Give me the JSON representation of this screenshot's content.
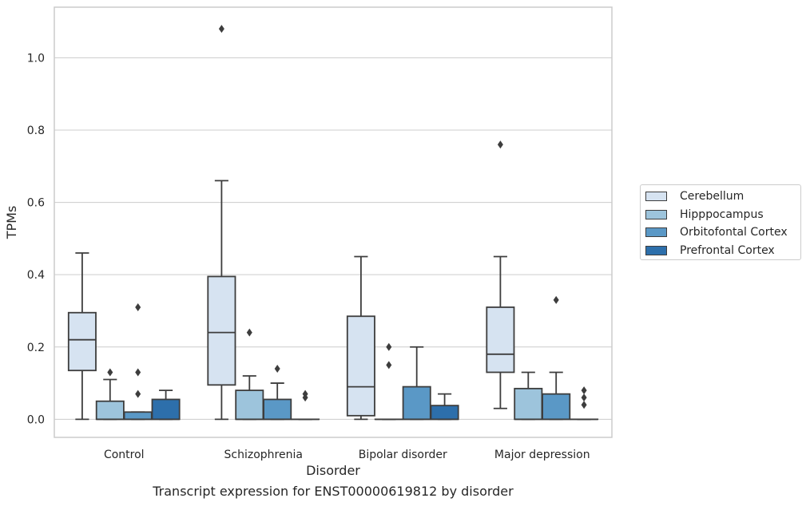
{
  "caption": "Transcript expression for ENST00000619812 by disorder",
  "chart_data": {
    "type": "box",
    "xlabel": "Disorder",
    "ylabel": "TPMs",
    "ylim": [
      -0.05,
      1.14
    ],
    "yticks": [
      "0.0",
      "0.2",
      "0.4",
      "0.6",
      "0.8",
      "1.0"
    ],
    "grid": "horizontal",
    "legend_position": "right",
    "categories": [
      "Control",
      "Schizophrenia",
      "Bipolar disorder",
      "Major depression"
    ],
    "series": [
      {
        "name": "Cerebellum",
        "color": "#d6e3f1",
        "boxes": [
          {
            "min": 0.0,
            "q1": 0.135,
            "median": 0.22,
            "q3": 0.295,
            "max": 0.46,
            "fliers": []
          },
          {
            "min": 0.0,
            "q1": 0.095,
            "median": 0.24,
            "q3": 0.395,
            "max": 0.66,
            "fliers": [
              1.08
            ]
          },
          {
            "min": 0.0,
            "q1": 0.01,
            "median": 0.09,
            "q3": 0.285,
            "max": 0.45,
            "fliers": []
          },
          {
            "min": 0.03,
            "q1": 0.13,
            "median": 0.18,
            "q3": 0.31,
            "max": 0.45,
            "fliers": [
              0.76
            ]
          }
        ]
      },
      {
        "name": "Hipppocampus",
        "color": "#9dc4dc",
        "boxes": [
          {
            "min": 0.0,
            "q1": 0.0,
            "median": 0.0,
            "q3": 0.05,
            "max": 0.11,
            "fliers": [
              0.13
            ]
          },
          {
            "min": 0.0,
            "q1": 0.0,
            "median": 0.0,
            "q3": 0.08,
            "max": 0.12,
            "fliers": [
              0.24
            ]
          },
          {
            "min": 0.0,
            "q1": 0.0,
            "median": 0.0,
            "q3": 0.0,
            "max": 0.0,
            "fliers": [
              0.15,
              0.2
            ]
          },
          {
            "min": 0.0,
            "q1": 0.0,
            "median": 0.0,
            "q3": 0.085,
            "max": 0.13,
            "fliers": []
          }
        ]
      },
      {
        "name": "Orbitofontal Cortex",
        "color": "#5a98c6",
        "boxes": [
          {
            "min": 0.0,
            "q1": 0.0,
            "median": 0.0,
            "q3": 0.02,
            "max": 0.02,
            "fliers": [
              0.07,
              0.13,
              0.31
            ]
          },
          {
            "min": 0.0,
            "q1": 0.0,
            "median": 0.0,
            "q3": 0.055,
            "max": 0.1,
            "fliers": [
              0.14
            ]
          },
          {
            "min": 0.0,
            "q1": 0.0,
            "median": 0.0,
            "q3": 0.09,
            "max": 0.2,
            "fliers": []
          },
          {
            "min": 0.0,
            "q1": 0.0,
            "median": 0.0,
            "q3": 0.07,
            "max": 0.13,
            "fliers": [
              0.33
            ]
          }
        ]
      },
      {
        "name": "Prefrontal Cortex",
        "color": "#2d6fab",
        "boxes": [
          {
            "min": 0.0,
            "q1": 0.0,
            "median": 0.0,
            "q3": 0.055,
            "max": 0.08,
            "fliers": []
          },
          {
            "min": 0.0,
            "q1": 0.0,
            "median": 0.0,
            "q3": 0.0,
            "max": 0.0,
            "fliers": [
              0.06,
              0.07
            ]
          },
          {
            "min": 0.0,
            "q1": 0.0,
            "median": 0.0,
            "q3": 0.038,
            "max": 0.07,
            "fliers": []
          },
          {
            "min": 0.0,
            "q1": 0.0,
            "median": 0.0,
            "q3": 0.0,
            "max": 0.0,
            "fliers": [
              0.04,
              0.06,
              0.08
            ]
          }
        ]
      }
    ]
  }
}
